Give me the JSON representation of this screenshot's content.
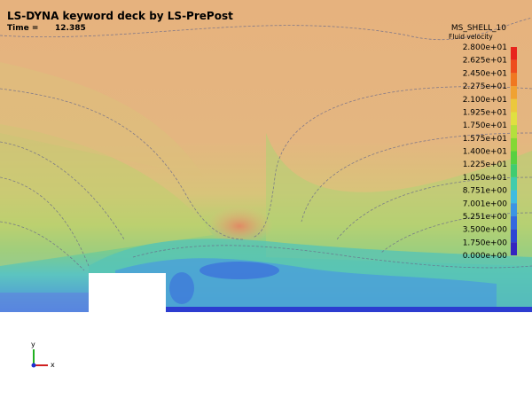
{
  "header": {
    "title": "LS-DYNA keyword deck by LS-PrePost",
    "time_label": "Time =",
    "time_value": "12.385"
  },
  "legend": {
    "title": "MS_SHELL_10",
    "subtitle": "Fluid velocity",
    "labels": [
      "2.800e+01",
      "2.625e+01",
      "2.450e+01",
      "2.275e+01",
      "2.100e+01",
      "1.925e+01",
      "1.750e+01",
      "1.575e+01",
      "1.400e+01",
      "1.225e+01",
      "1.050e+01",
      "8.751e+00",
      "7.001e+00",
      "5.251e+00",
      "3.500e+00",
      "1.750e+00",
      "0.000e+00"
    ],
    "colors": [
      "#e8241c",
      "#ee4c1c",
      "#f07820",
      "#f0a232",
      "#ecc83c",
      "#e0e040",
      "#b4e03c",
      "#84d834",
      "#58d040",
      "#40cc70",
      "#40ccac",
      "#40bce0",
      "#3c94e4",
      "#3468e0",
      "#2c44d4",
      "#3424c0"
    ]
  },
  "triad": {
    "y": "y",
    "x": "x"
  }
}
